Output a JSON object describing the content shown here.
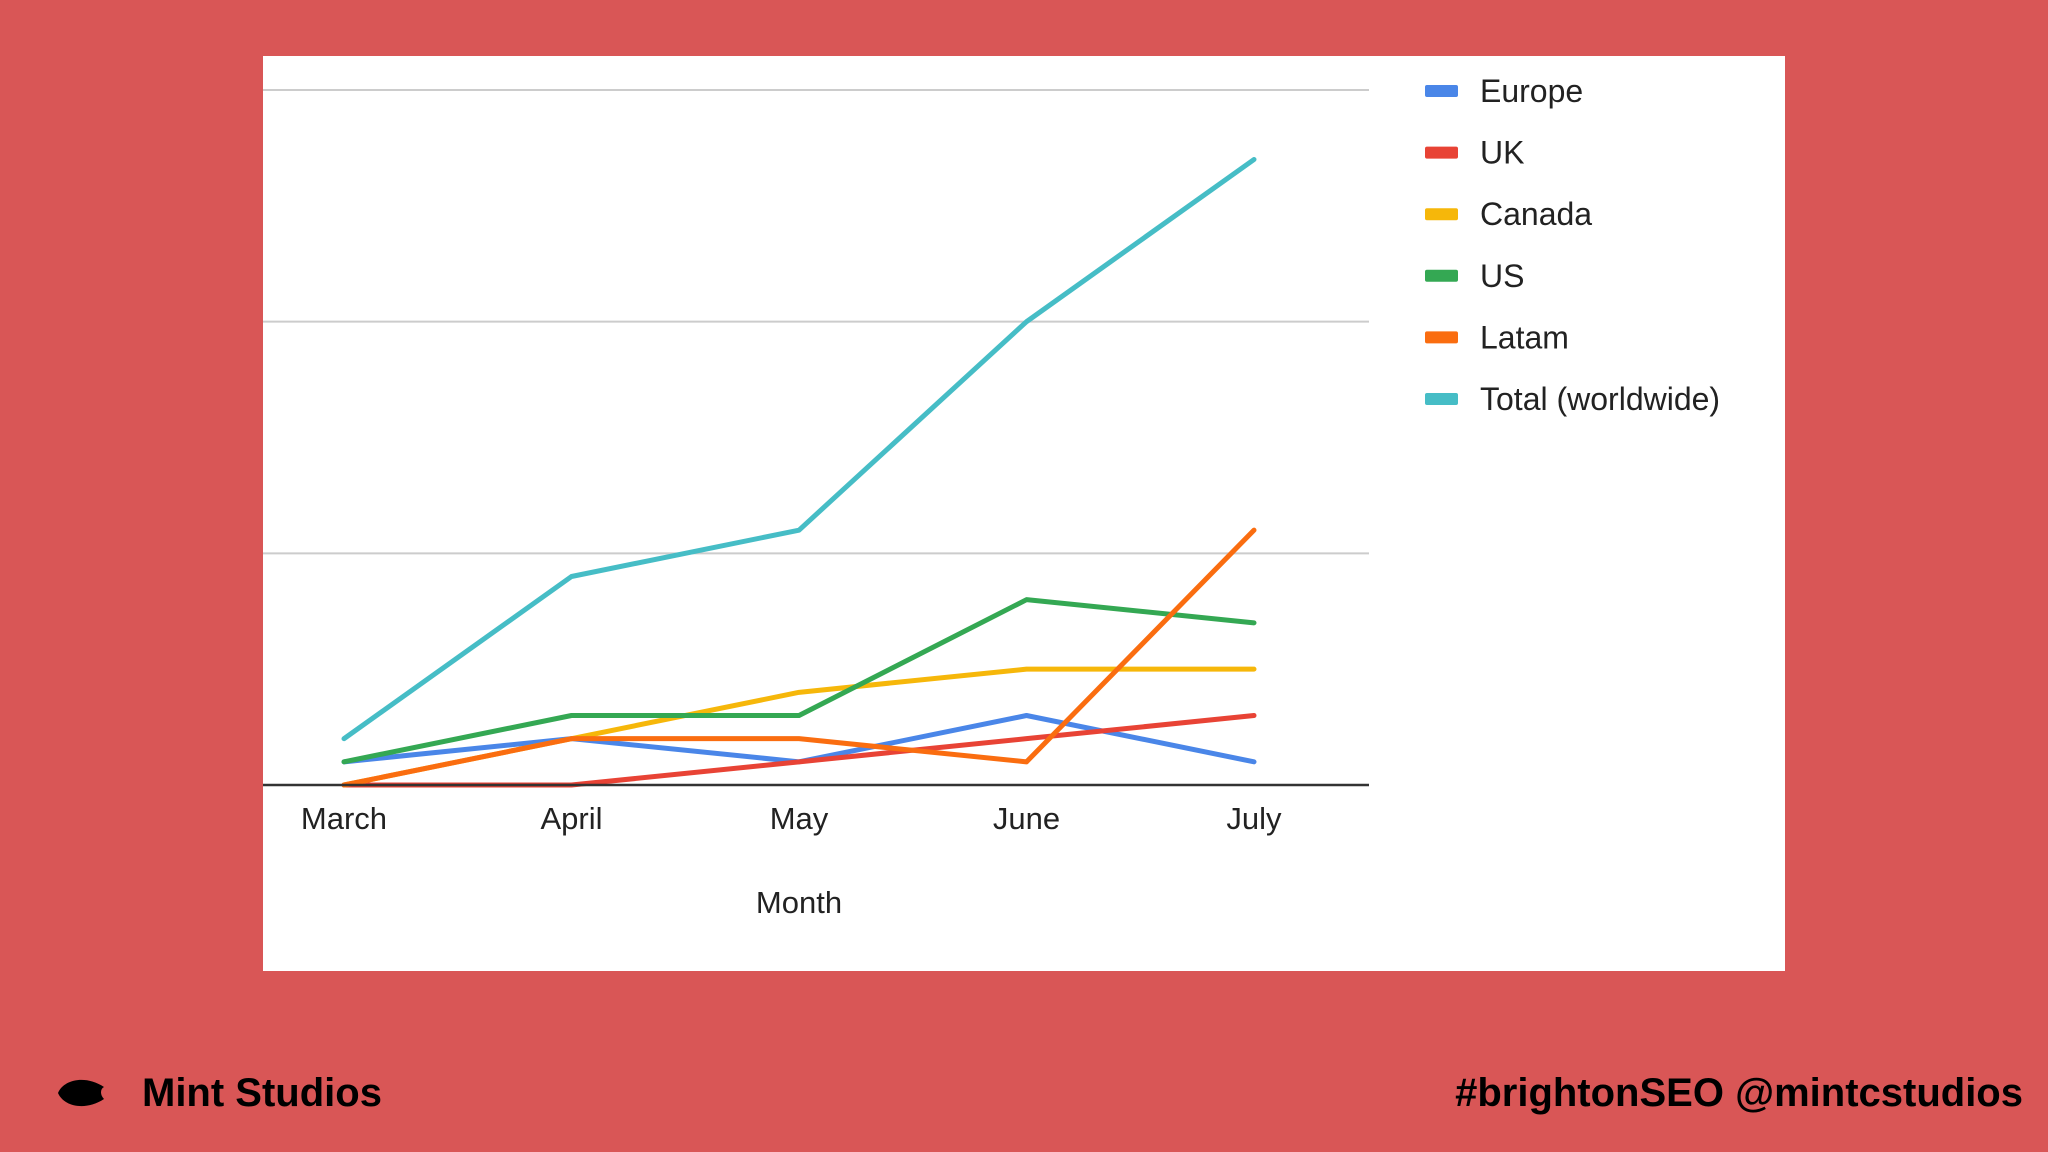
{
  "chart_data": {
    "type": "line",
    "title": "",
    "xlabel": "Month",
    "ylabel": "",
    "categories": [
      "March",
      "April",
      "May",
      "June",
      "July"
    ],
    "ylim": [
      0,
      30
    ],
    "grid": true,
    "legend_position": "right",
    "series": [
      {
        "name": "Europe",
        "color": "#4a86e8",
        "values": [
          1,
          2,
          1,
          3,
          1
        ]
      },
      {
        "name": "UK",
        "color": "#e84335",
        "values": [
          0,
          0,
          1,
          2,
          3
        ]
      },
      {
        "name": "Canada",
        "color": "#f6b70a",
        "values": [
          0,
          2,
          4,
          5,
          5
        ]
      },
      {
        "name": "US",
        "color": "#34a853",
        "values": [
          1,
          3,
          3,
          8,
          7
        ]
      },
      {
        "name": "Latam",
        "color": "#fa6d10",
        "values": [
          0,
          2,
          2,
          1,
          11
        ]
      },
      {
        "name": "Total (worldwide)",
        "color": "#46bdc6",
        "values": [
          2,
          9,
          11,
          20,
          27
        ]
      }
    ]
  },
  "footer": {
    "brand_name": "Mint Studios",
    "tags": "#brightonSEO @mintcstudios"
  }
}
